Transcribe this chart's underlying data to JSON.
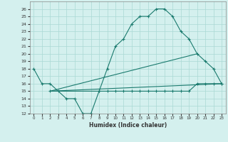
{
  "xlabel": "Humidex (Indice chaleur)",
  "bg_color": "#d4f0ee",
  "grid_color": "#aad8d4",
  "line_color": "#1a7a6e",
  "xlim": [
    -0.5,
    23.5
  ],
  "ylim": [
    12,
    27
  ],
  "xticks": [
    0,
    1,
    2,
    3,
    4,
    5,
    6,
    7,
    8,
    9,
    10,
    11,
    12,
    13,
    14,
    15,
    16,
    17,
    18,
    19,
    20,
    21,
    22,
    23
  ],
  "yticks": [
    12,
    13,
    14,
    15,
    16,
    17,
    18,
    19,
    20,
    21,
    22,
    23,
    24,
    25,
    26
  ],
  "line1_x": [
    0,
    1,
    2,
    3,
    4,
    5,
    6,
    7,
    8,
    9,
    10,
    11,
    12,
    13,
    14,
    15,
    16,
    17,
    18,
    19,
    20,
    21,
    22,
    23
  ],
  "line1_y": [
    18,
    16,
    16,
    15,
    14,
    14,
    12,
    12,
    15,
    18,
    21,
    22,
    24,
    25,
    25,
    26,
    26,
    25,
    23,
    22,
    20,
    19,
    18,
    16
  ],
  "line2_x": [
    2,
    20
  ],
  "line2_y": [
    15,
    20
  ],
  "line3_x": [
    2,
    23
  ],
  "line3_y": [
    15,
    16
  ],
  "line4_x": [
    2,
    8,
    9,
    10,
    11,
    12,
    13,
    14,
    15,
    16,
    17,
    18,
    19,
    20,
    21,
    22,
    23
  ],
  "line4_y": [
    15,
    15,
    15,
    15,
    15,
    15,
    15,
    15,
    15,
    15,
    15,
    15,
    15,
    16,
    16,
    16,
    16
  ]
}
